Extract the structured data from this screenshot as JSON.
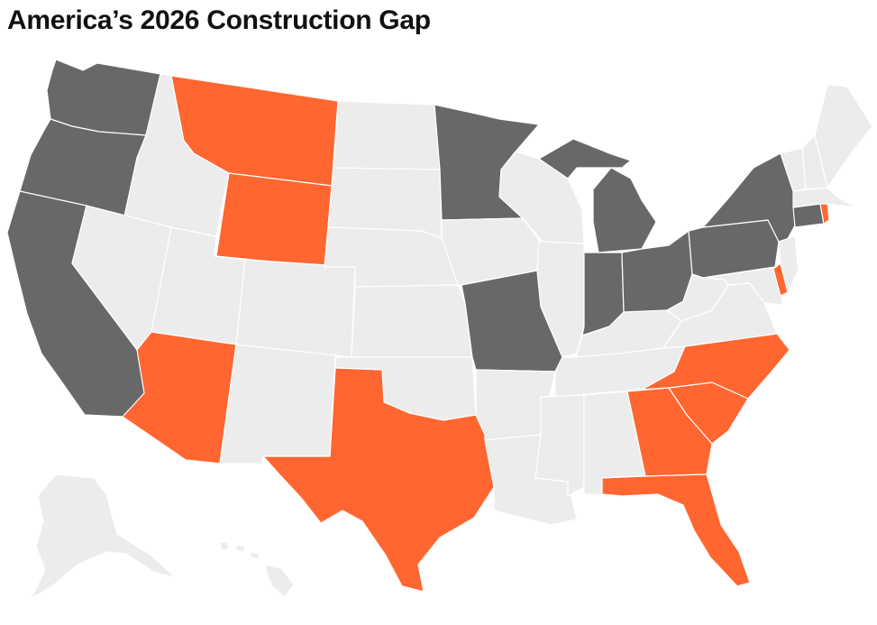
{
  "title": "America’s 2026 Construction Gap",
  "colors": {
    "orange": "#ff6630",
    "dark": "#686868",
    "light": "#ececec",
    "border": "#ffffff"
  },
  "states": [
    {
      "code": "WA",
      "category": "dark"
    },
    {
      "code": "OR",
      "category": "dark"
    },
    {
      "code": "CA",
      "category": "dark"
    },
    {
      "code": "ID",
      "category": "light"
    },
    {
      "code": "NV",
      "category": "light"
    },
    {
      "code": "MT",
      "category": "orange"
    },
    {
      "code": "WY",
      "category": "orange"
    },
    {
      "code": "UT",
      "category": "light"
    },
    {
      "code": "AZ",
      "category": "orange"
    },
    {
      "code": "CO",
      "category": "light"
    },
    {
      "code": "NM",
      "category": "light"
    },
    {
      "code": "ND",
      "category": "light"
    },
    {
      "code": "SD",
      "category": "light"
    },
    {
      "code": "NE",
      "category": "light"
    },
    {
      "code": "KS",
      "category": "light"
    },
    {
      "code": "OK",
      "category": "light"
    },
    {
      "code": "TX",
      "category": "orange"
    },
    {
      "code": "MN",
      "category": "dark"
    },
    {
      "code": "IA",
      "category": "light"
    },
    {
      "code": "MO",
      "category": "dark"
    },
    {
      "code": "AR",
      "category": "light"
    },
    {
      "code": "LA",
      "category": "light"
    },
    {
      "code": "WI",
      "category": "light"
    },
    {
      "code": "IL",
      "category": "light"
    },
    {
      "code": "MI",
      "category": "dark"
    },
    {
      "code": "IN",
      "category": "dark"
    },
    {
      "code": "OH",
      "category": "dark"
    },
    {
      "code": "KY",
      "category": "light"
    },
    {
      "code": "TN",
      "category": "light"
    },
    {
      "code": "MS",
      "category": "light"
    },
    {
      "code": "AL",
      "category": "light"
    },
    {
      "code": "GA",
      "category": "orange"
    },
    {
      "code": "FL",
      "category": "orange"
    },
    {
      "code": "SC",
      "category": "orange"
    },
    {
      "code": "NC",
      "category": "orange"
    },
    {
      "code": "VA",
      "category": "light"
    },
    {
      "code": "WV",
      "category": "light"
    },
    {
      "code": "PA",
      "category": "dark"
    },
    {
      "code": "NY",
      "category": "dark"
    },
    {
      "code": "NJ",
      "category": "light"
    },
    {
      "code": "DE",
      "category": "orange"
    },
    {
      "code": "MD",
      "category": "light"
    },
    {
      "code": "CT",
      "category": "dark"
    },
    {
      "code": "RI",
      "category": "orange"
    },
    {
      "code": "MA",
      "category": "light"
    },
    {
      "code": "VT",
      "category": "light"
    },
    {
      "code": "NH",
      "category": "light"
    },
    {
      "code": "ME",
      "category": "light"
    },
    {
      "code": "AK",
      "category": "light"
    },
    {
      "code": "HI",
      "category": "light"
    }
  ]
}
